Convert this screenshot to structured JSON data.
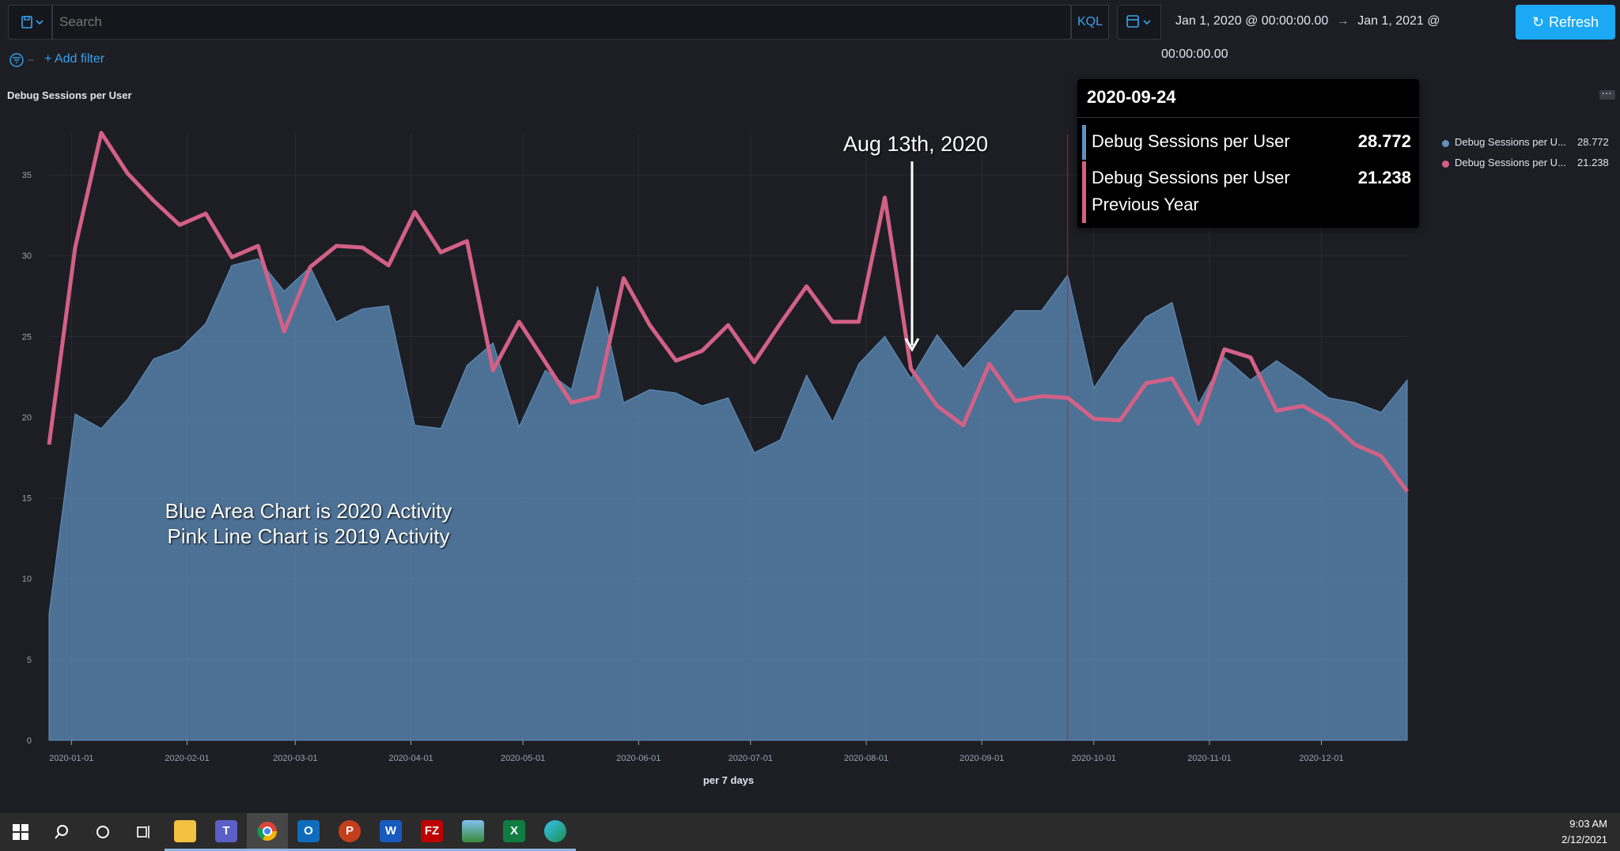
{
  "query_bar": {
    "search_placeholder": "Search",
    "language_label": "KQL",
    "date_start": "Jan 1, 2020 @ 00:00:00.00",
    "date_arrow": "→",
    "date_end": "Jan 1, 2021 @ 00:00:00.00",
    "refresh_label": "Refresh"
  },
  "filters": {
    "add_filter_label": "+ Add filter"
  },
  "panel": {
    "title": "Debug Sessions per User"
  },
  "tooltip": {
    "date": "2020-09-24",
    "rows": [
      {
        "label": "Debug Sessions per User",
        "value": "28.772",
        "color": "#6092c0"
      },
      {
        "label": "Debug Sessions per User Previous Year",
        "value": "21.238",
        "color": "#d36086"
      }
    ]
  },
  "legend": [
    {
      "label": "Debug Sessions per U...",
      "value": "28.772",
      "color": "#6092c0"
    },
    {
      "label": "Debug Sessions per U...",
      "value": "21.238",
      "color": "#d36086"
    }
  ],
  "annotations": {
    "marker_label": "Aug 13th, 2020",
    "explanation_line1": "Blue Area Chart is 2020 Activity",
    "explanation_line2": "Pink Line Chart is 2019 Activity"
  },
  "chart_data": {
    "type": "area",
    "xlabel": "per 7 days",
    "ylabel": "",
    "ylim": [
      0,
      37.5
    ],
    "yticks": [
      0,
      5,
      10,
      15,
      20,
      25,
      30,
      35
    ],
    "x_tick_labels": [
      "2020-01-01",
      "2020-02-01",
      "2020-03-01",
      "2020-04-01",
      "2020-05-01",
      "2020-06-01",
      "2020-07-01",
      "2020-08-01",
      "2020-09-01",
      "2020-10-01",
      "2020-11-01",
      "2020-12-01"
    ],
    "grid": true,
    "legend_position": "right",
    "x": [
      "2019-12-26",
      "2020-01-02",
      "2020-01-09",
      "2020-01-16",
      "2020-01-23",
      "2020-01-30",
      "2020-02-06",
      "2020-02-13",
      "2020-02-20",
      "2020-02-27",
      "2020-03-05",
      "2020-03-12",
      "2020-03-19",
      "2020-03-26",
      "2020-04-02",
      "2020-04-09",
      "2020-04-16",
      "2020-04-23",
      "2020-04-30",
      "2020-05-07",
      "2020-05-14",
      "2020-05-21",
      "2020-05-28",
      "2020-06-04",
      "2020-06-11",
      "2020-06-18",
      "2020-06-25",
      "2020-07-02",
      "2020-07-09",
      "2020-07-16",
      "2020-07-23",
      "2020-07-30",
      "2020-08-06",
      "2020-08-13",
      "2020-08-20",
      "2020-08-27",
      "2020-09-03",
      "2020-09-10",
      "2020-09-17",
      "2020-09-24",
      "2020-10-01",
      "2020-10-08",
      "2020-10-15",
      "2020-10-22",
      "2020-10-29",
      "2020-11-05",
      "2020-11-12",
      "2020-11-19",
      "2020-11-26",
      "2020-12-03",
      "2020-12-10",
      "2020-12-17",
      "2020-12-24"
    ],
    "series": [
      {
        "name": "Debug Sessions per User",
        "type": "area",
        "color": "#6092c0",
        "values": [
          7.8,
          20.2,
          19.3,
          21.1,
          23.6,
          24.2,
          25.8,
          29.4,
          29.8,
          27.8,
          29.3,
          25.9,
          26.7,
          26.9,
          19.5,
          19.3,
          23.2,
          24.6,
          19.4,
          22.9,
          21.7,
          28.1,
          20.9,
          21.7,
          21.5,
          20.7,
          21.2,
          17.8,
          18.6,
          22.6,
          19.7,
          23.3,
          25.0,
          22.4,
          25.1,
          23.0,
          24.8,
          26.6,
          26.6,
          28.8,
          21.8,
          24.2,
          26.2,
          27.1,
          20.8,
          23.7,
          22.3,
          23.5,
          22.4,
          21.2,
          20.9,
          20.3,
          22.3
        ]
      },
      {
        "name": "Debug Sessions per User Previous Year",
        "type": "line",
        "color": "#d36086",
        "values": [
          18.3,
          30.5,
          37.6,
          35.1,
          33.4,
          31.9,
          32.6,
          29.9,
          30.6,
          25.3,
          29.3,
          30.6,
          30.5,
          29.4,
          32.7,
          30.2,
          30.9,
          22.9,
          25.9,
          23.4,
          20.9,
          21.3,
          28.6,
          25.7,
          23.5,
          24.1,
          25.7,
          23.4,
          25.8,
          28.1,
          25.9,
          25.9,
          33.6,
          23.0,
          20.7,
          19.5,
          23.3,
          21.0,
          21.3,
          21.2,
          19.9,
          19.8,
          22.1,
          22.4,
          19.6,
          24.2,
          23.7,
          20.4,
          20.7,
          19.8,
          18.3,
          17.6,
          15.4
        ]
      }
    ]
  }
}
